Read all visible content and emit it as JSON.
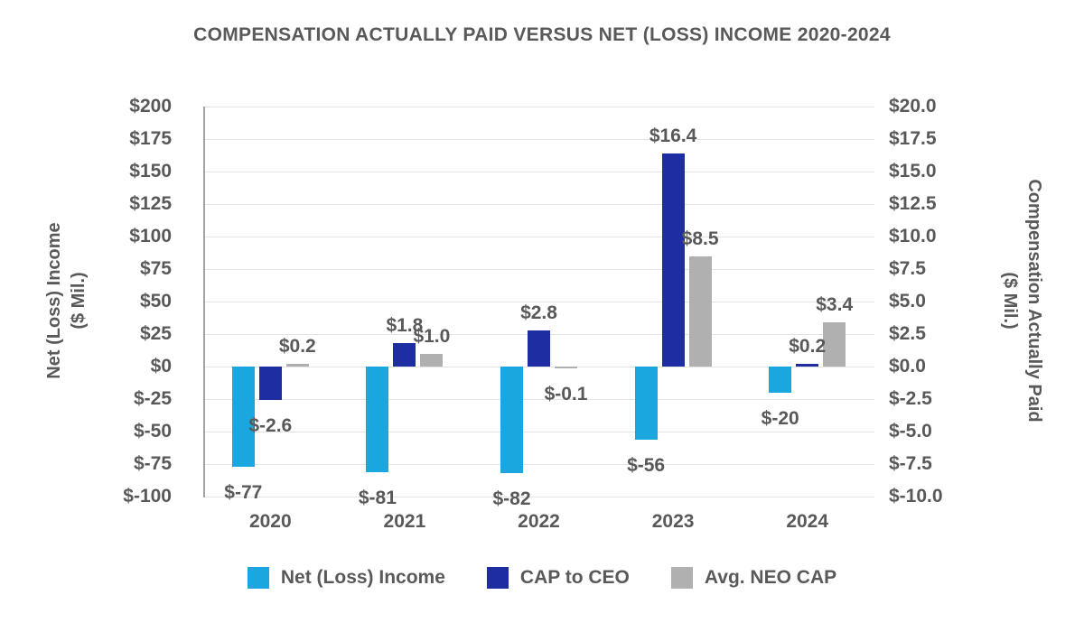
{
  "title": "COMPENSATION ACTUALLY PAID VERSUS NET (LOSS) INCOME 2020-2024",
  "left_axis": {
    "title_line1": "Net (Loss) Income",
    "title_line2": "($ Mil.)",
    "ticks": [
      "$200",
      "$175",
      "$150",
      "$125",
      "$100",
      "$75",
      "$50",
      "$25",
      "$0",
      "$-25",
      "$-50",
      "$-75",
      "$-100"
    ]
  },
  "right_axis": {
    "title_line1": "Compensation Actually Paid",
    "title_line2": "($ Mil.)",
    "ticks": [
      "$20.0",
      "$17.5",
      "$15.0",
      "$12.5",
      "$10.0",
      "$7.5",
      "$5.0",
      "$2.5",
      "$0.0",
      "$-2.5",
      "$-5.0",
      "$-7.5",
      "$-10.0"
    ]
  },
  "chart_data": {
    "type": "bar",
    "title": "COMPENSATION ACTUALLY PAID VERSUS NET (LOSS) INCOME 2020-2024",
    "categories": [
      "2020",
      "2021",
      "2022",
      "2023",
      "2024"
    ],
    "series": [
      {
        "name": "Net (Loss) Income",
        "axis": "left",
        "color": "#1AA7E0",
        "values": [
          -77,
          -81,
          -82,
          -56,
          -20
        ],
        "labels": [
          "$-77",
          "$-81",
          "$-82",
          "$-56",
          "$-20"
        ]
      },
      {
        "name": "CAP to CEO",
        "axis": "right",
        "color": "#1F2DA3",
        "values": [
          -2.6,
          1.8,
          2.8,
          16.4,
          0.2
        ],
        "labels": [
          "$-2.6",
          "$1.8",
          "$2.8",
          "$16.4",
          "$0.2"
        ]
      },
      {
        "name": "Avg. NEO CAP",
        "axis": "right",
        "color": "#B0B0B0",
        "values": [
          0.2,
          1.0,
          -0.1,
          8.5,
          3.4
        ],
        "labels": [
          "$0.2",
          "$1.0",
          "$-0.1",
          "$8.5",
          "$3.4"
        ]
      }
    ],
    "left_ylabel": "Net (Loss) Income ($ Mil.)",
    "right_ylabel": "Compensation Actually Paid ($ Mil.)",
    "left_ylim": [
      -100,
      200
    ],
    "right_ylim": [
      -10,
      20
    ],
    "grid": true,
    "legend_position": "bottom"
  },
  "legend": {
    "items": [
      {
        "label": "Net (Loss) Income",
        "color": "#1AA7E0"
      },
      {
        "label": "CAP to CEO",
        "color": "#1F2DA3"
      },
      {
        "label": "Avg. NEO CAP",
        "color": "#B0B0B0"
      }
    ]
  },
  "colors": {
    "text": "#595959",
    "grid": "#E4E4E4",
    "axis_line": "#A3A3A3",
    "background": "#FFFFFF"
  }
}
